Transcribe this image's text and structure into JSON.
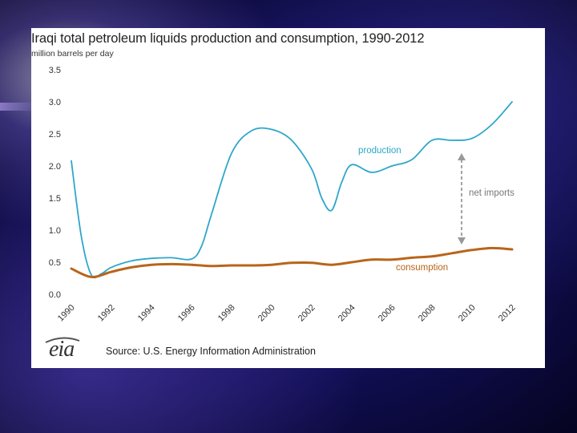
{
  "chart_data": {
    "type": "line",
    "title": "Iraqi total petroleum liquids production and consumption, 1990-2012",
    "ylabel": "million barrels per day",
    "ylim": [
      0,
      3.5
    ],
    "yticks": [
      "3.5",
      "3.0",
      "2.5",
      "2.0",
      "1.5",
      "1.0",
      "0.5",
      "0.0"
    ],
    "xticks": [
      "1990",
      "1992",
      "1994",
      "1996",
      "1998",
      "2000",
      "2002",
      "2004",
      "2006",
      "2008",
      "2010",
      "2012"
    ],
    "series": [
      {
        "name": "production",
        "color": "#2ea7c9",
        "x": [
          1990,
          1990.5,
          1991,
          1991.5,
          1992,
          1993,
          1994,
          1995,
          1996,
          1996.5,
          1997,
          1998,
          1999,
          2000,
          2001,
          2002,
          2002.5,
          2003,
          2003.5,
          2004,
          2005,
          2006,
          2007,
          2008,
          2009,
          2010,
          2011,
          2012
        ],
        "values": [
          2.08,
          0.9,
          0.3,
          0.32,
          0.42,
          0.52,
          0.56,
          0.57,
          0.55,
          0.75,
          1.25,
          2.2,
          2.55,
          2.57,
          2.4,
          1.95,
          1.5,
          1.31,
          1.75,
          2.02,
          1.9,
          2.0,
          2.1,
          2.4,
          2.4,
          2.43,
          2.65,
          3.0
        ]
      },
      {
        "name": "consumption",
        "color": "#b8651b",
        "x": [
          1990,
          1991,
          1992,
          1993,
          1994,
          1995,
          1996,
          1997,
          1998,
          1999,
          2000,
          2001,
          2002,
          2003,
          2004,
          2005,
          2006,
          2007,
          2008,
          2009,
          2010,
          2011,
          2012
        ],
        "values": [
          0.4,
          0.27,
          0.35,
          0.42,
          0.46,
          0.47,
          0.46,
          0.44,
          0.45,
          0.45,
          0.46,
          0.49,
          0.49,
          0.46,
          0.5,
          0.54,
          0.54,
          0.57,
          0.59,
          0.64,
          0.69,
          0.72,
          0.7
        ]
      }
    ],
    "annotations": [
      {
        "text": "production",
        "color": "#2ea7c9"
      },
      {
        "text": "consumption",
        "color": "#b8651b"
      },
      {
        "text": "net imports",
        "color": "#777777"
      }
    ]
  },
  "footer": {
    "logo_text": "eia",
    "source": "Source: U.S. Energy Information Administration"
  }
}
